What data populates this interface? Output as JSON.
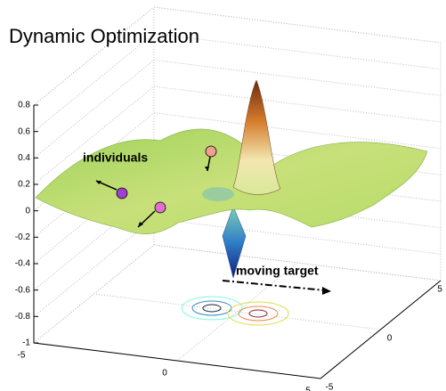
{
  "chart_data": {
    "type": "surface",
    "title": "Dynamic Optimization",
    "annotations": [
      "individuals",
      "moving target"
    ],
    "xlim": [
      -5,
      5
    ],
    "xticks": [
      -5,
      0,
      5
    ],
    "ylim": [
      -5,
      5
    ],
    "yticks": [
      -5,
      0,
      5
    ],
    "zlim": [
      -1,
      0.8
    ],
    "zticks": [
      -1,
      -0.8,
      -0.6,
      -0.4,
      -0.2,
      0,
      0.2,
      0.4,
      0.6,
      0.8
    ],
    "grid": true
  }
}
